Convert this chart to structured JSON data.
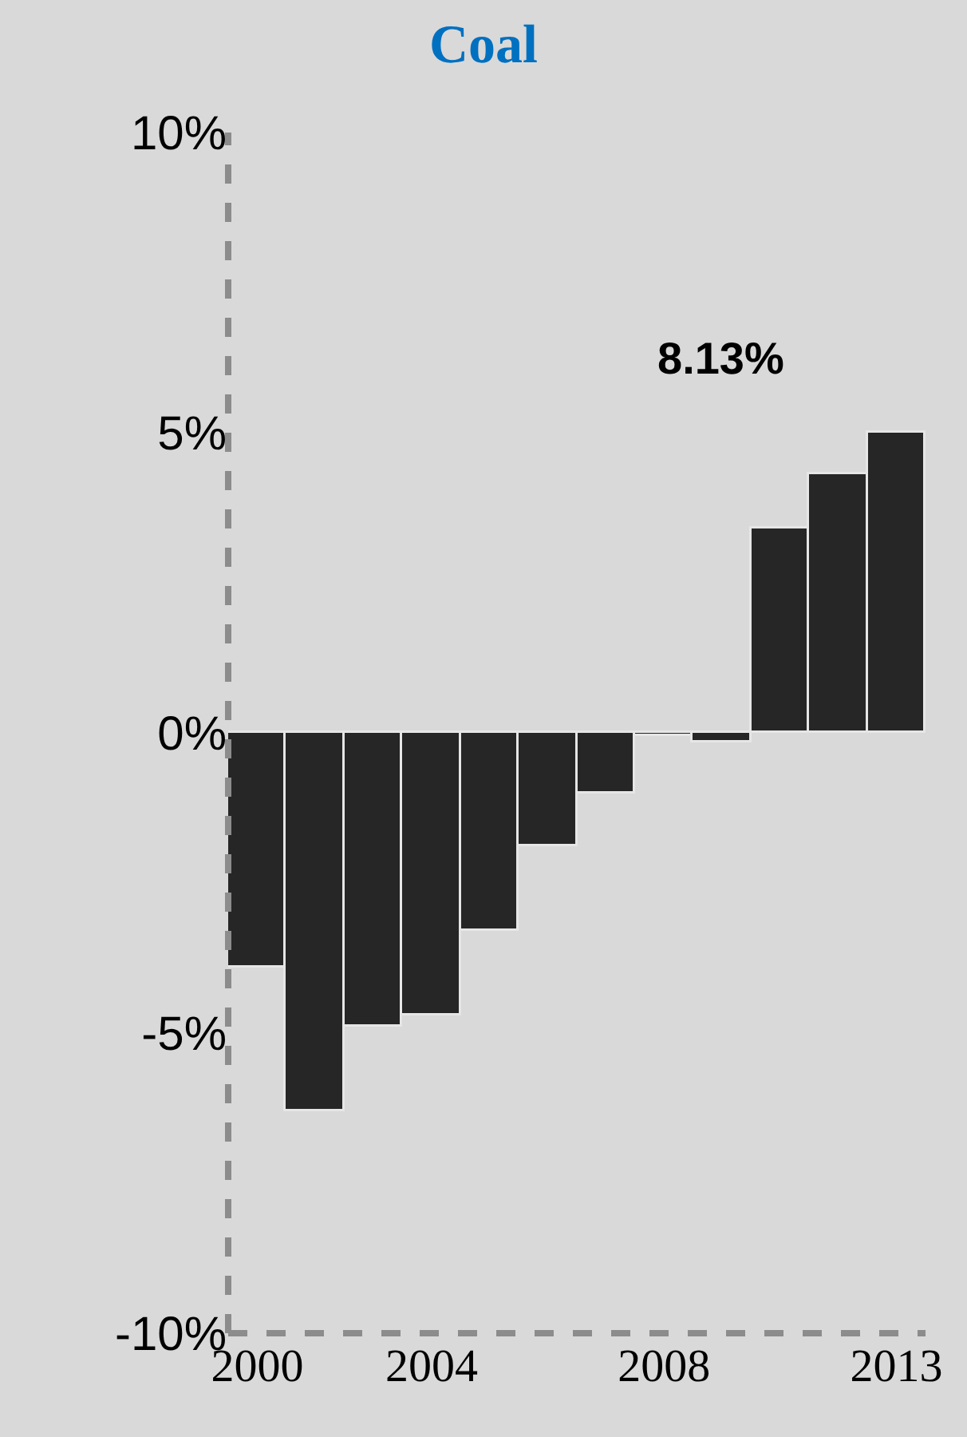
{
  "chart_data": {
    "type": "bar",
    "title": "Coal",
    "categories": [
      "2000",
      null,
      null,
      "2004",
      null,
      null,
      null,
      "2008",
      null,
      null,
      null,
      "2013"
    ],
    "values": [
      -3.9,
      -6.3,
      -4.9,
      -4.7,
      -3.3,
      -1.9,
      -1.0,
      -0.05,
      -0.15,
      3.4,
      4.3,
      5.0
    ],
    "color": "#262626",
    "ylim": [
      -10,
      10
    ],
    "yticks": [
      {
        "value": -10,
        "label": "-10%"
      },
      {
        "value": -5,
        "label": "-5%"
      },
      {
        "value": 0,
        "label": "0%"
      },
      {
        "value": 5,
        "label": "5%"
      },
      {
        "value": 10,
        "label": "10%"
      }
    ],
    "grid": false,
    "legend": false,
    "annotations": [
      "8.13%"
    ]
  }
}
